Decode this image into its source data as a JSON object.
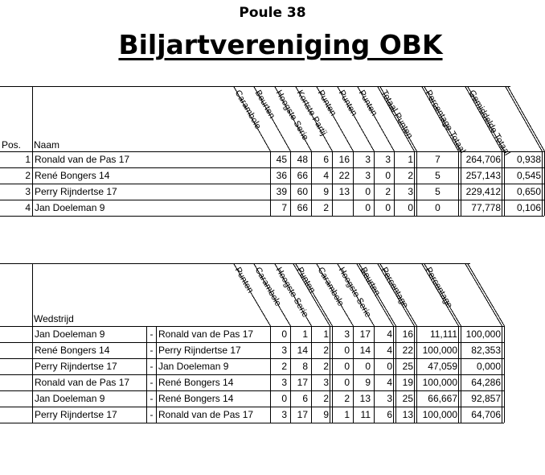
{
  "subtitle": "Poule 38",
  "title": "Biljartvereniging OBK",
  "standings": {
    "pos_header": "Pos.",
    "name_header": "Naam",
    "columns": [
      "Carambole",
      "Beurten",
      "Hoogste Serie",
      "Kortste Partij",
      "Punten",
      "Punten",
      "Punten",
      "Totaal Punten",
      "Percentage Totaal",
      "Gemiddelde Totaal"
    ],
    "rows": [
      {
        "pos": "1",
        "name": "Ronald van de Pas 17",
        "values": [
          "45",
          "48",
          "6",
          "16",
          "3",
          "3",
          "1",
          "7",
          "264,706",
          "0,938"
        ]
      },
      {
        "pos": "2",
        "name": "René Bongers 14",
        "values": [
          "36",
          "66",
          "4",
          "22",
          "3",
          "0",
          "2",
          "5",
          "257,143",
          "0,545"
        ]
      },
      {
        "pos": "3",
        "name": "Perry Rijndertse 17",
        "values": [
          "39",
          "60",
          "9",
          "13",
          "0",
          "2",
          "3",
          "5",
          "229,412",
          "0,650"
        ]
      },
      {
        "pos": "4",
        "name": "Jan Doeleman 9",
        "values": [
          "7",
          "66",
          "2",
          "",
          "0",
          "0",
          "0",
          "0",
          "77,778",
          "0,106"
        ]
      }
    ]
  },
  "matches": {
    "header": "Wedstrijd",
    "columns": [
      "Punten",
      "Carambole",
      "Hoogste Serie",
      "Punten",
      "Carambole",
      "Hoogste Serie",
      "Beurten",
      "Percentage",
      "Percentage"
    ],
    "rows": [
      {
        "a": "Jan Doeleman 9",
        "sep": "-",
        "b": "Ronald van de Pas 17",
        "values": [
          "0",
          "1",
          "1",
          "3",
          "17",
          "4",
          "16",
          "11,111",
          "100,000"
        ]
      },
      {
        "a": "René Bongers 14",
        "sep": "-",
        "b": "Perry Rijndertse 17",
        "values": [
          "3",
          "14",
          "2",
          "0",
          "14",
          "4",
          "22",
          "100,000",
          "82,353"
        ]
      },
      {
        "a": "Perry Rijndertse 17",
        "sep": "-",
        "b": "Jan Doeleman 9",
        "values": [
          "2",
          "8",
          "2",
          "0",
          "0",
          "0",
          "25",
          "47,059",
          "0,000"
        ]
      },
      {
        "a": "Ronald van de Pas 17",
        "sep": "-",
        "b": "René Bongers 14",
        "values": [
          "3",
          "17",
          "3",
          "0",
          "9",
          "4",
          "19",
          "100,000",
          "64,286"
        ]
      },
      {
        "a": "Jan Doeleman 9",
        "sep": "-",
        "b": "René Bongers 14",
        "values": [
          "0",
          "6",
          "2",
          "2",
          "13",
          "3",
          "25",
          "66,667",
          "92,857"
        ]
      },
      {
        "a": "Perry Rijndertse 17",
        "sep": "-",
        "b": "Ronald van de Pas 17",
        "values": [
          "3",
          "17",
          "9",
          "1",
          "11",
          "6",
          "13",
          "100,000",
          "64,706"
        ]
      }
    ]
  }
}
